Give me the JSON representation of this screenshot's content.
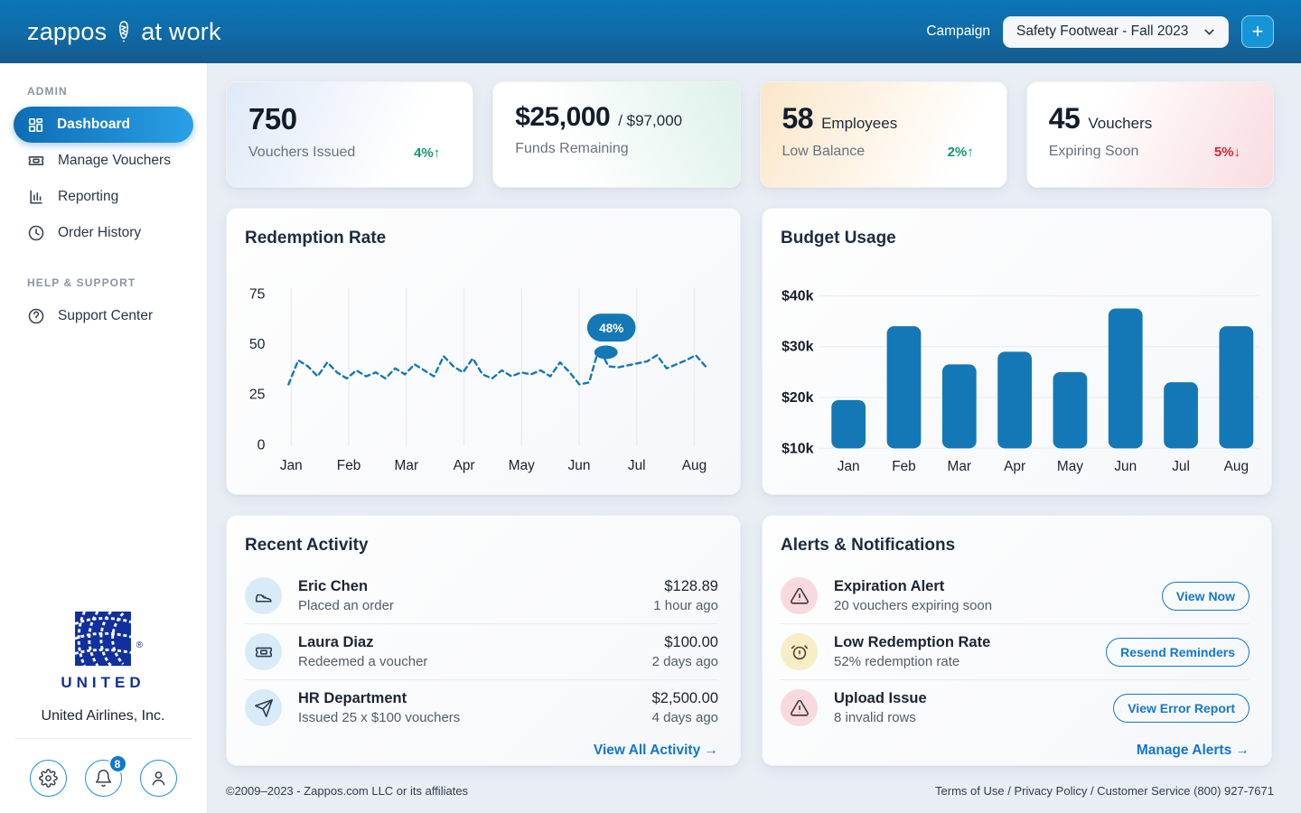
{
  "header": {
    "brand": "zappos",
    "brand_suffix": "at work",
    "campaign_label": "Campaign",
    "campaign_value": "Safety Footwear - Fall 2023",
    "add_button": "+"
  },
  "sidebar": {
    "admin_label": "ADMIN",
    "help_label": "HELP & SUPPORT",
    "items": [
      {
        "label": "Dashboard",
        "active": true
      },
      {
        "label": "Manage Vouchers"
      },
      {
        "label": "Reporting"
      },
      {
        "label": "Order History"
      },
      {
        "label": "Support Center"
      }
    ],
    "company": {
      "logo_text": "UNITED",
      "mark": "®",
      "name": "United Airlines, Inc."
    },
    "bell_badge": "8"
  },
  "stats": [
    {
      "value": "750",
      "suffix": "",
      "label": "Vouchers Issued",
      "delta": "4%↑",
      "direction": "up"
    },
    {
      "value": "$25,000",
      "suffix": "/ $97,000",
      "label": "Funds Remaining",
      "delta": "",
      "direction": ""
    },
    {
      "value": "58",
      "suffix": "Employees",
      "label": "Low Balance",
      "delta": "2%↑",
      "direction": "up"
    },
    {
      "value": "45",
      "suffix": "Vouchers",
      "label": "Expiring Soon",
      "delta": "5%↓",
      "direction": "down"
    }
  ],
  "chart_data": [
    {
      "type": "line",
      "title": "Redemption Rate",
      "x_labels": [
        "Jan",
        "Feb",
        "Mar",
        "Apr",
        "May",
        "Jun",
        "Jul",
        "Aug"
      ],
      "y_ticks": [
        0,
        25,
        50,
        75
      ],
      "ylim": [
        0,
        79
      ],
      "unit": "%",
      "line_style": "dashed",
      "grid": "vertical",
      "values": [
        30,
        42,
        39,
        34,
        41,
        36,
        33,
        37,
        34,
        36,
        33,
        38,
        35,
        40,
        37,
        34,
        44,
        39,
        36,
        43,
        35,
        33,
        37,
        34,
        36,
        35,
        37,
        34,
        41,
        36,
        30,
        31,
        48,
        39,
        38.5,
        39.5,
        40.5,
        41.5,
        44.5,
        38,
        40,
        42,
        44.5,
        39
      ],
      "tooltip": {
        "label": "48%",
        "value": 48,
        "index": 32
      }
    },
    {
      "type": "bar",
      "title": "Budget Usage",
      "categories": [
        "Jan",
        "Feb",
        "Mar",
        "Apr",
        "May",
        "Jun",
        "Jul",
        "Aug"
      ],
      "values": [
        19500,
        34000,
        26500,
        29000,
        25000,
        37500,
        23000,
        34000
      ],
      "y_ticks": [
        10000,
        20000,
        30000,
        40000
      ],
      "y_tick_labels": [
        "$10k",
        "$20k",
        "$30k",
        "$40k"
      ],
      "baseline": 10000,
      "ymax": 40000,
      "grid": "horizontal"
    }
  ],
  "activity": {
    "title": "Recent Activity",
    "items": [
      {
        "icon": "sneaker-icon",
        "name": "Eric Chen",
        "desc": "Placed an order",
        "amount": "$128.89",
        "time": "1 hour ago"
      },
      {
        "icon": "voucher-icon",
        "name": "Laura Diaz",
        "desc": "Redeemed a voucher",
        "amount": "$100.00",
        "time": "2 days ago"
      },
      {
        "icon": "send-icon",
        "name": "HR Department",
        "desc": "Issued 25 x $100 vouchers",
        "amount": "$2,500.00",
        "time": "4 days ago"
      }
    ],
    "link": "View All Activity →"
  },
  "alerts": {
    "title": "Alerts & Notifications",
    "items": [
      {
        "icon": "warning-triangle-icon",
        "name": "Expiration Alert",
        "desc": "20 vouchers expiring soon",
        "action": "View Now"
      },
      {
        "icon": "alarm-clock-icon",
        "name": "Low Redemption Rate",
        "desc": "52% redemption rate",
        "action": "Resend Reminders"
      },
      {
        "icon": "warning-triangle-icon",
        "name": "Upload Issue",
        "desc": "8 invalid rows",
        "action": "View Error Report"
      }
    ],
    "link": "Manage Alerts →"
  },
  "footer": {
    "left": "©2009–2023 - Zappos.com LLC or its affiliates",
    "right": "Terms of Use / Privacy Policy / Customer Service (800) 927-7671"
  },
  "colors": {
    "accent": "#1478b6",
    "header_top": "#0b76b6",
    "header_bottom": "#175a8c",
    "link": "#1176d2",
    "green": "#0d9b68",
    "red": "#e0242e",
    "united_blue": "#10309e",
    "background": "#e9edf4"
  }
}
